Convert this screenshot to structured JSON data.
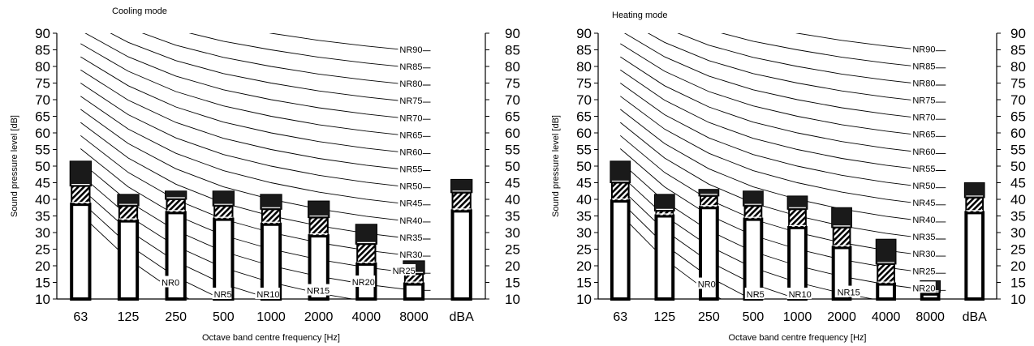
{
  "chart_data": [
    {
      "type": "bar",
      "title": "Cooling mode",
      "xlabel": "Octave band centre frequency [Hz]",
      "ylabel": "Sound pressure level [dB]",
      "ylim": [
        10,
        90
      ],
      "yticks": [
        10,
        15,
        20,
        25,
        30,
        35,
        40,
        45,
        50,
        55,
        60,
        65,
        70,
        75,
        80,
        85,
        90
      ],
      "categories": [
        "63",
        "125",
        "250",
        "500",
        "1000",
        "2000",
        "4000",
        "8000",
        "dBA"
      ],
      "series": [
        {
          "values": [
            51.5,
            41.5,
            42.5,
            42.5,
            41.5,
            39.5,
            32.5,
            21.5,
            46
          ]
        },
        {
          "values": [
            44,
            38,
            40,
            38,
            37,
            34.5,
            26.5,
            17.5,
            42
          ]
        },
        {
          "values": [
            38.5,
            33.5,
            36,
            34,
            32.5,
            29,
            20.5,
            14.5,
            36.5
          ]
        }
      ],
      "nr_curves": [
        "NR0",
        "NR5",
        "NR10",
        "NR15",
        "NR20",
        "NR25",
        "NR30",
        "NR35",
        "NR40",
        "NR45",
        "NR50",
        "NR55",
        "NR60",
        "NR65",
        "NR70",
        "NR75",
        "NR80",
        "NR85",
        "NR90"
      ],
      "grid": false
    },
    {
      "type": "bar",
      "title": "Heating mode",
      "xlabel": "Octave band centre frequency [Hz]",
      "ylabel": "Sound pressure level [dB]",
      "ylim": [
        10,
        90
      ],
      "yticks": [
        10,
        15,
        20,
        25,
        30,
        35,
        40,
        45,
        50,
        55,
        60,
        65,
        70,
        75,
        80,
        85,
        90
      ],
      "categories": [
        "63",
        "125",
        "250",
        "500",
        "1000",
        "2000",
        "4000",
        "8000",
        "dBA"
      ],
      "series": [
        {
          "values": [
            51.5,
            41.5,
            43,
            42.5,
            41,
            37.5,
            28,
            15.5,
            45
          ]
        },
        {
          "values": [
            45,
            36.5,
            41,
            38,
            37,
            31.5,
            20.5,
            12,
            40.5
          ]
        },
        {
          "values": [
            39.5,
            35,
            37.5,
            34,
            31.5,
            25.5,
            14.5,
            11.5,
            36
          ]
        }
      ],
      "nr_curves": [
        "NR0",
        "NR5",
        "NR10",
        "NR15",
        "NR20",
        "NR25",
        "NR30",
        "NR35",
        "NR40",
        "NR45",
        "NR50",
        "NR55",
        "NR60",
        "NR65",
        "NR70",
        "NR75",
        "NR80",
        "NR85",
        "NR90"
      ],
      "grid": false
    }
  ]
}
